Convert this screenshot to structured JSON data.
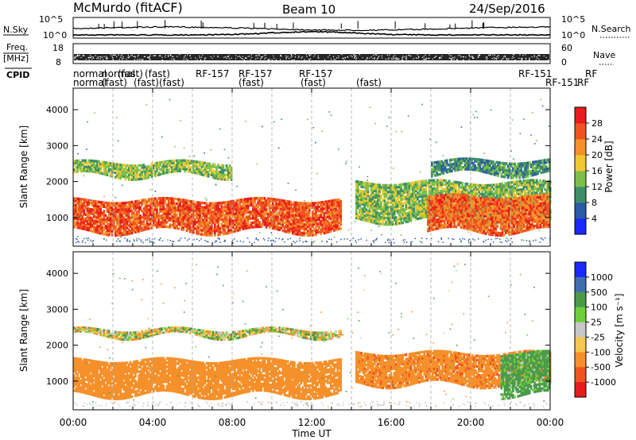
{
  "header": {
    "station": "McMurdo (fitACF)",
    "beam": "Beam 10",
    "date": "24/Sep/2016"
  },
  "noise_panel": {
    "label": "N.Sky",
    "right_label": "N.Search",
    "ticks_left": [
      "10^5",
      "10^0"
    ],
    "ticks_right": [
      "10^5",
      "10^0"
    ]
  },
  "freq_panel": {
    "label_line1": "Freq.",
    "label_line2": "[MHz]",
    "right_label": "Nave",
    "ticks_left": [
      "18",
      "8"
    ],
    "ticks_right": [
      "60",
      "0"
    ]
  },
  "cpid": {
    "label": "CPID",
    "row1": [
      "normal",
      "normal",
      "(fast)",
      "(fast)",
      "RF-157",
      "RF-157",
      "RF-157",
      "RF-151",
      "RF"
    ],
    "row2": [
      "normal",
      "(fast)",
      "(fast)",
      "(fast)",
      "(fast)",
      "(fast)",
      "(fast)",
      "RF-151",
      "RF"
    ]
  },
  "chart_data": [
    {
      "type": "heatmap",
      "title": "Power",
      "ylabel": "Slant Range [km]",
      "ylim": [
        200,
        4600
      ],
      "yticks": [
        1000,
        2000,
        3000,
        4000
      ],
      "xlim": [
        "00:00",
        "24:00"
      ],
      "xticks": [
        "00:00",
        "04:00",
        "08:00",
        "12:00",
        "16:00",
        "20:00",
        "00:00"
      ],
      "colorbar": {
        "label": "Power [dB]",
        "ticks": [
          4,
          8,
          12,
          16,
          20,
          24,
          28
        ],
        "colors": [
          "#1a2aff",
          "#2a5aa8",
          "#3e8f67",
          "#7cbf4a",
          "#f0c832",
          "#f5902a",
          "#ef5420",
          "#e81c1c"
        ]
      },
      "bands": [
        {
          "start_hr": 0.0,
          "end_hr": 13.5,
          "range_km": [
            600,
            1500
          ],
          "level_db": 26
        },
        {
          "start_hr": 0.0,
          "end_hr": 8.0,
          "range_km": [
            2150,
            2550
          ],
          "level_db": 14
        },
        {
          "start_hr": 14.2,
          "end_hr": 24.0,
          "range_km": [
            900,
            2000
          ],
          "level_db": 14
        },
        {
          "start_hr": 17.8,
          "end_hr": 24.0,
          "range_km": [
            600,
            1600
          ],
          "level_db": 25
        },
        {
          "start_hr": 18.0,
          "end_hr": 24.0,
          "range_km": [
            2200,
            2600
          ],
          "level_db": 10
        }
      ]
    },
    {
      "type": "heatmap",
      "title": "Velocity",
      "ylabel": "Slant Range [km]",
      "ylim": [
        200,
        4600
      ],
      "yticks": [
        1000,
        2000,
        3000,
        4000
      ],
      "xlim": [
        "00:00",
        "24:00"
      ],
      "xticks": [
        "00:00",
        "04:00",
        "08:00",
        "12:00",
        "16:00",
        "20:00",
        "00:00"
      ],
      "xlabel": "Time UT",
      "colorbar": {
        "label": "Velocity [m s⁻¹]",
        "ticks": [
          "1000",
          "500",
          "100",
          "25",
          "-25",
          "-100",
          "-500",
          "-1000"
        ],
        "colors": [
          "#1a2aff",
          "#3e6fb0",
          "#4a9a4a",
          "#6fcf3a",
          "#c8c8c8",
          "#f5c850",
          "#f5902a",
          "#ef5420",
          "#e81c1c"
        ]
      },
      "bands": [
        {
          "start_hr": 0.0,
          "end_hr": 13.5,
          "range_km": [
            600,
            1600
          ],
          "velocity_ms": -300
        },
        {
          "start_hr": 0.0,
          "end_hr": 13.5,
          "range_km": [
            2250,
            2450
          ],
          "velocity_ms": 0
        },
        {
          "start_hr": 14.2,
          "end_hr": 24.0,
          "range_km": [
            900,
            1800
          ],
          "velocity_ms": -350
        },
        {
          "start_hr": 21.5,
          "end_hr": 24.0,
          "range_km": [
            600,
            1800
          ],
          "velocity_ms": 200
        }
      ]
    }
  ]
}
